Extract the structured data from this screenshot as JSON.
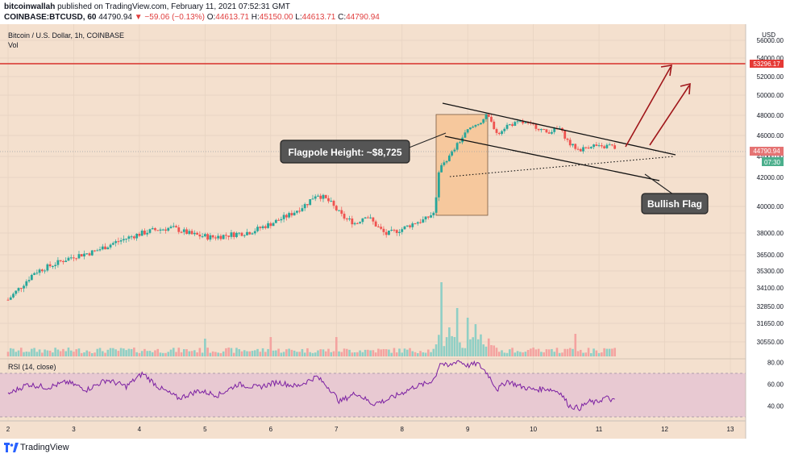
{
  "header": {
    "publisher": "bitcoinwallah",
    "published_text": "published on TradingView.com, February 11, 2021 07:52:31 GMT",
    "symbol": "COINBASE:BTCUSD, 60",
    "last": "44790.94",
    "change": "▼ −59.06 (−0.13%)",
    "o_label": "O:",
    "o": "44613.71",
    "h_label": "H:",
    "h": "45150.00",
    "l_label": "L:",
    "l": "44613.71",
    "c_label": "C:",
    "c": "44790.94"
  },
  "footer": {
    "brand": "TradingView"
  },
  "chart_data": {
    "type": "candlestick",
    "title": "Bitcoin / U.S. Dollar, 1h, COINBASE",
    "volume_label": "Vol",
    "currency": "USD",
    "price_axis_ticks": [
      "56000.00",
      "54000.00",
      "52000.00",
      "50000.00",
      "48000.00",
      "46000.00",
      "44000.00",
      "42000.00",
      "40000.00",
      "38000.00",
      "36500.00",
      "35300.00",
      "34100.00",
      "32850.00",
      "31650.00",
      "30550.00"
    ],
    "x_ticks": [
      "2",
      "3",
      "4",
      "5",
      "6",
      "7",
      "8",
      "9",
      "10",
      "11",
      "12",
      "13"
    ],
    "resistance_level": "53296.17",
    "last_price_label": "44790.94",
    "countdown": "07:30",
    "rsi": {
      "label": "RSI (14, close)",
      "ticks": [
        "80.00",
        "60.00",
        "40.00"
      ],
      "band": [
        30,
        70
      ]
    },
    "annotations": {
      "flagpole": "Flagpole Height: ~$8,725",
      "flag": "Bullish Flag"
    },
    "trend_waypoints": [
      [
        2.0,
        33300
      ],
      [
        2.2,
        34200
      ],
      [
        2.4,
        35200
      ],
      [
        2.7,
        35800
      ],
      [
        3.0,
        36400
      ],
      [
        3.3,
        36700
      ],
      [
        3.6,
        37300
      ],
      [
        3.9,
        37800
      ],
      [
        4.2,
        38200
      ],
      [
        4.5,
        38400
      ],
      [
        4.8,
        37900
      ],
      [
        5.1,
        37700
      ],
      [
        5.4,
        37900
      ],
      [
        5.7,
        38100
      ],
      [
        6.0,
        38700
      ],
      [
        6.3,
        39400
      ],
      [
        6.55,
        40200
      ],
      [
        6.7,
        40900
      ],
      [
        6.9,
        40300
      ],
      [
        7.1,
        39200
      ],
      [
        7.3,
        38700
      ],
      [
        7.45,
        39400
      ],
      [
        7.6,
        38600
      ],
      [
        7.75,
        37900
      ],
      [
        8.0,
        38300
      ],
      [
        8.2,
        38800
      ],
      [
        8.35,
        39000
      ],
      [
        8.5,
        39600
      ],
      [
        8.58,
        43200
      ],
      [
        8.7,
        43800
      ],
      [
        8.85,
        45200
      ],
      [
        9.0,
        46500
      ],
      [
        9.2,
        47400
      ],
      [
        9.3,
        48000
      ],
      [
        9.45,
        46200
      ],
      [
        9.6,
        47000
      ],
      [
        9.8,
        47300
      ],
      [
        10.0,
        47000
      ],
      [
        10.2,
        46300
      ],
      [
        10.4,
        46700
      ],
      [
        10.55,
        45200
      ],
      [
        10.7,
        44600
      ],
      [
        10.9,
        45100
      ],
      [
        11.05,
        44800
      ],
      [
        11.15,
        45100
      ],
      [
        11.25,
        44790
      ]
    ],
    "rsi_waypoints": [
      [
        2.0,
        51
      ],
      [
        2.3,
        60
      ],
      [
        2.6,
        57
      ],
      [
        2.9,
        62
      ],
      [
        3.2,
        55
      ],
      [
        3.5,
        64
      ],
      [
        3.8,
        58
      ],
      [
        4.05,
        70
      ],
      [
        4.3,
        57
      ],
      [
        4.6,
        47
      ],
      [
        4.9,
        54
      ],
      [
        5.2,
        50
      ],
      [
        5.5,
        60
      ],
      [
        5.8,
        57
      ],
      [
        6.1,
        62
      ],
      [
        6.4,
        58
      ],
      [
        6.7,
        67
      ],
      [
        6.9,
        56
      ],
      [
        7.05,
        44
      ],
      [
        7.3,
        52
      ],
      [
        7.55,
        42
      ],
      [
        7.75,
        45
      ],
      [
        8.0,
        52
      ],
      [
        8.2,
        58
      ],
      [
        8.4,
        61
      ],
      [
        8.5,
        66
      ],
      [
        8.58,
        80
      ],
      [
        8.7,
        76
      ],
      [
        8.85,
        82
      ],
      [
        9.0,
        77
      ],
      [
        9.15,
        79
      ],
      [
        9.3,
        70
      ],
      [
        9.45,
        55
      ],
      [
        9.6,
        63
      ],
      [
        9.8,
        58
      ],
      [
        10.0,
        55
      ],
      [
        10.2,
        56
      ],
      [
        10.4,
        53
      ],
      [
        10.55,
        40
      ],
      [
        10.7,
        38
      ],
      [
        10.85,
        44
      ],
      [
        10.95,
        43
      ],
      [
        11.1,
        48
      ],
      [
        11.25,
        44
      ]
    ],
    "volume_spikes": [
      [
        8.58,
        92
      ],
      [
        8.7,
        36
      ],
      [
        8.85,
        60
      ],
      [
        9.0,
        48
      ],
      [
        9.1,
        40
      ],
      [
        10.65,
        28
      ],
      [
        7.0,
        24
      ],
      [
        6.0,
        24
      ],
      [
        5.0,
        22
      ]
    ],
    "colors": {
      "up": "#26a69a",
      "down": "#ef5350",
      "resistance": "#d8312a",
      "arrow": "#a0161a",
      "bg": "#f4e0ce",
      "rsi_band": "#e8c9d2",
      "rsi_line": "#7b1fa2",
      "flagpole_box": "#f6c89d"
    }
  }
}
